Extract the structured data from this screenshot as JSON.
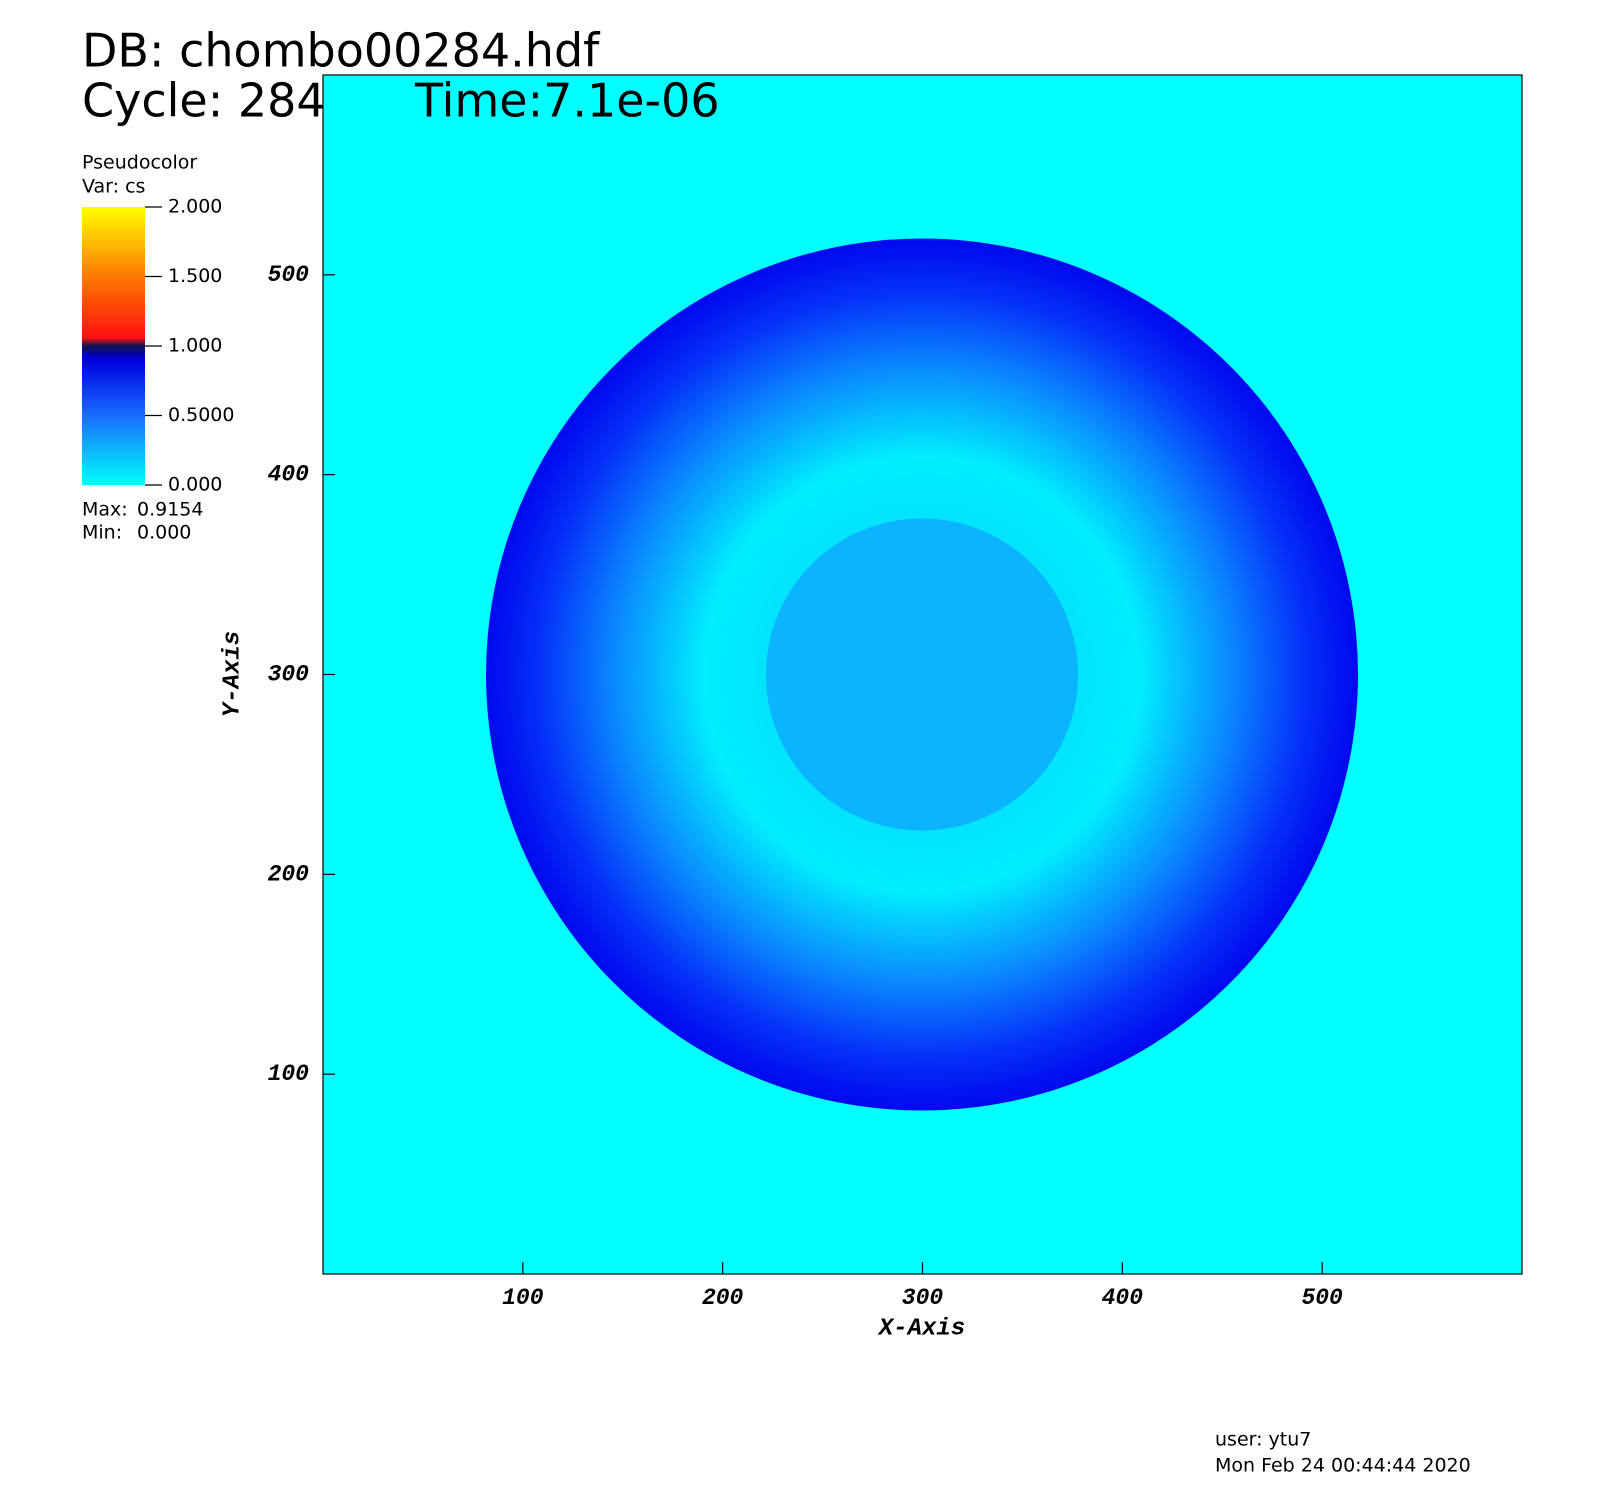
{
  "chart_data": {
    "type": "pseudocolor",
    "title": "DB: chombo00284.hdf",
    "cycle": "Cycle: 284",
    "time": "Time:7.1e-06",
    "x_label": "X-Axis",
    "y_label": "Y-Axis",
    "xlim": [
      0,
      600
    ],
    "ylim": [
      0,
      600
    ],
    "xticks": [
      100,
      200,
      300,
      400,
      500
    ],
    "yticks": [
      100,
      200,
      300,
      400,
      500
    ],
    "colorbar": {
      "title": "Pseudocolor",
      "variable": "Var: cs",
      "lim": [
        0,
        2
      ],
      "ticks": [
        {
          "value": 0,
          "label": "0.000"
        },
        {
          "value": 0.5,
          "label": "0.5000"
        },
        {
          "value": 1,
          "label": "1.000"
        },
        {
          "value": 1.5,
          "label": "1.500"
        },
        {
          "value": 2,
          "label": "2.000"
        }
      ],
      "max_label": "Max:",
      "max": 0.9154,
      "min_label": "Min:",
      "min": {
        "value": 0,
        "label": "0.000"
      }
    },
    "user": "user: ytu7",
    "date": "Mon Feb 24 00:44:44 2020"
  }
}
